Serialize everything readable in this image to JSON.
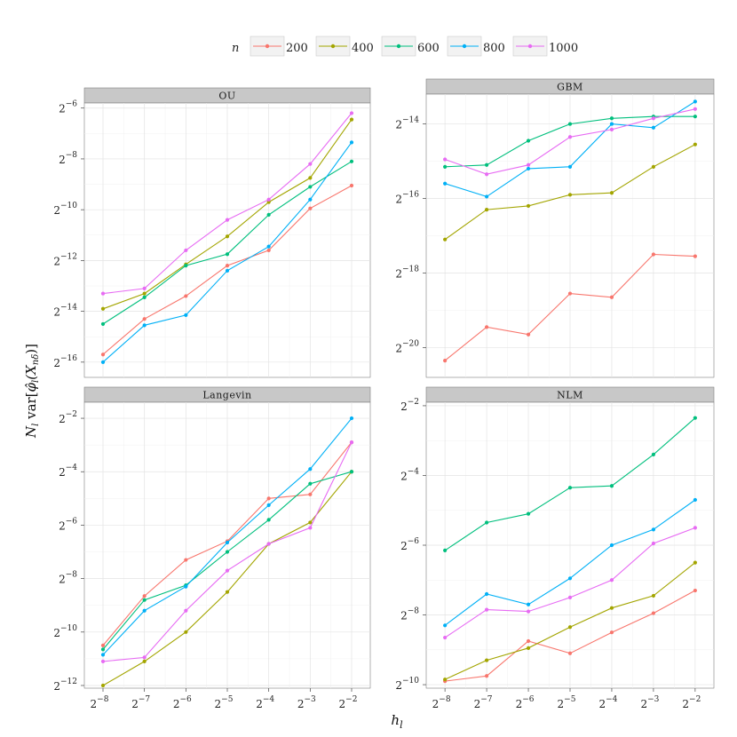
{
  "chart_data": {
    "type": "line",
    "facet_layout": "2x2",
    "xlabel": "h_l",
    "ylabel": "N_l var[φ̂_l(X_{nδ})]",
    "legend": {
      "title": "n",
      "position": "top",
      "entries": [
        "200",
        "400",
        "600",
        "800",
        "1000"
      ],
      "colors": [
        "#F8766D",
        "#A3A500",
        "#00BF7D",
        "#00B0F6",
        "#E76BF3"
      ]
    },
    "x_ticks": [
      {
        "base": "2",
        "exp": "−8"
      },
      {
        "base": "2",
        "exp": "−7"
      },
      {
        "base": "2",
        "exp": "−6"
      },
      {
        "base": "2",
        "exp": "−5"
      },
      {
        "base": "2",
        "exp": "−4"
      },
      {
        "base": "2",
        "exp": "−3"
      },
      {
        "base": "2",
        "exp": "−2"
      }
    ],
    "x_log2": [
      -8,
      -7,
      -6,
      -5,
      -4,
      -3,
      -2
    ],
    "xlim_log2": [
      -8.45,
      -1.55
    ],
    "facets": [
      {
        "title": "OU",
        "ylim_log2": [
          -16.6,
          -5.8
        ],
        "y_ticks": [
          {
            "value": -16,
            "base": "2",
            "exp": "−16"
          },
          {
            "value": -14,
            "base": "2",
            "exp": "−14"
          },
          {
            "value": -12,
            "base": "2",
            "exp": "−12"
          },
          {
            "value": -10,
            "base": "2",
            "exp": "−10"
          },
          {
            "value": -8,
            "base": "2",
            "exp": "−8"
          },
          {
            "value": -6,
            "base": "2",
            "exp": "−6"
          }
        ],
        "series": [
          {
            "name": "200",
            "values": [
              -15.7,
              -14.3,
              -13.4,
              -12.2,
              -11.6,
              -9.95,
              -9.05
            ]
          },
          {
            "name": "400",
            "values": [
              -13.9,
              -13.3,
              -12.15,
              -11.05,
              -9.7,
              -8.75,
              -6.45
            ]
          },
          {
            "name": "600",
            "values": [
              -14.5,
              -13.45,
              -12.2,
              -11.75,
              -10.2,
              -9.1,
              -8.1
            ]
          },
          {
            "name": "800",
            "values": [
              -16.0,
              -14.55,
              -14.15,
              -12.4,
              -11.45,
              -9.6,
              -7.35
            ]
          },
          {
            "name": "1000",
            "values": [
              -13.3,
              -13.1,
              -11.6,
              -10.4,
              -9.6,
              -8.2,
              -6.2
            ]
          }
        ]
      },
      {
        "title": "GBM",
        "ylim_log2": [
          -20.8,
          -13.2
        ],
        "y_ticks": [
          {
            "value": -20,
            "base": "2",
            "exp": "−20"
          },
          {
            "value": -18,
            "base": "2",
            "exp": "−18"
          },
          {
            "value": -16,
            "base": "2",
            "exp": "−16"
          },
          {
            "value": -14,
            "base": "2",
            "exp": "−14"
          }
        ],
        "series": [
          {
            "name": "200",
            "values": [
              -20.35,
              -19.45,
              -19.65,
              -18.55,
              -18.65,
              -17.5,
              -17.55
            ]
          },
          {
            "name": "400",
            "values": [
              -17.1,
              -16.3,
              -16.2,
              -15.9,
              -15.85,
              -15.15,
              -14.55
            ]
          },
          {
            "name": "600",
            "values": [
              -15.15,
              -15.1,
              -14.45,
              -14.0,
              -13.85,
              -13.8,
              -13.8
            ]
          },
          {
            "name": "800",
            "values": [
              -15.6,
              -15.95,
              -15.2,
              -15.15,
              -14.0,
              -14.1,
              -13.4
            ]
          },
          {
            "name": "1000",
            "values": [
              -14.95,
              -15.35,
              -15.1,
              -14.35,
              -14.15,
              -13.85,
              -13.6
            ]
          }
        ]
      },
      {
        "title": "Langevin",
        "ylim_log2": [
          -12.1,
          -1.4
        ],
        "y_ticks": [
          {
            "value": -12,
            "base": "2",
            "exp": "−12"
          },
          {
            "value": -10,
            "base": "2",
            "exp": "−10"
          },
          {
            "value": -8,
            "base": "2",
            "exp": "−8"
          },
          {
            "value": -6,
            "base": "2",
            "exp": "−6"
          },
          {
            "value": -4,
            "base": "2",
            "exp": "−4"
          },
          {
            "value": -2,
            "base": "2",
            "exp": "−2"
          }
        ],
        "series": [
          {
            "name": "200",
            "values": [
              -10.5,
              -8.65,
              -7.3,
              -6.6,
              -5.0,
              -4.85,
              -2.9
            ]
          },
          {
            "name": "400",
            "values": [
              -12.0,
              -11.1,
              -10.0,
              -8.5,
              -6.7,
              -5.9,
              -4.0
            ]
          },
          {
            "name": "600",
            "values": [
              -10.65,
              -8.8,
              -8.25,
              -7.0,
              -5.8,
              -4.45,
              -4.0
            ]
          },
          {
            "name": "800",
            "values": [
              -10.85,
              -9.2,
              -8.3,
              -6.65,
              -5.25,
              -3.9,
              -2.0
            ]
          },
          {
            "name": "1000",
            "values": [
              -11.1,
              -10.95,
              -9.2,
              -7.7,
              -6.7,
              -6.1,
              -2.9
            ]
          }
        ]
      },
      {
        "title": "NLM",
        "ylim_log2": [
          -10.1,
          -1.9
        ],
        "y_ticks": [
          {
            "value": -10,
            "base": "2",
            "exp": "−10"
          },
          {
            "value": -8,
            "base": "2",
            "exp": "−8"
          },
          {
            "value": -6,
            "base": "2",
            "exp": "−6"
          },
          {
            "value": -4,
            "base": "2",
            "exp": "−4"
          },
          {
            "value": -2,
            "base": "2",
            "exp": "−2"
          }
        ],
        "series": [
          {
            "name": "200",
            "values": [
              -9.9,
              -9.75,
              -8.75,
              -9.1,
              -8.5,
              -7.95,
              -7.3
            ]
          },
          {
            "name": "400",
            "values": [
              -9.85,
              -9.3,
              -8.95,
              -8.35,
              -7.8,
              -7.45,
              -6.5
            ]
          },
          {
            "name": "600",
            "values": [
              -6.15,
              -5.35,
              -5.1,
              -4.35,
              -4.3,
              -3.4,
              -2.35
            ]
          },
          {
            "name": "800",
            "values": [
              -8.3,
              -7.4,
              -7.7,
              -6.95,
              -6.0,
              -5.55,
              -4.7
            ]
          },
          {
            "name": "1000",
            "values": [
              -8.65,
              -7.85,
              -7.9,
              -7.5,
              -7.0,
              -5.95,
              -5.5
            ]
          }
        ]
      }
    ]
  }
}
